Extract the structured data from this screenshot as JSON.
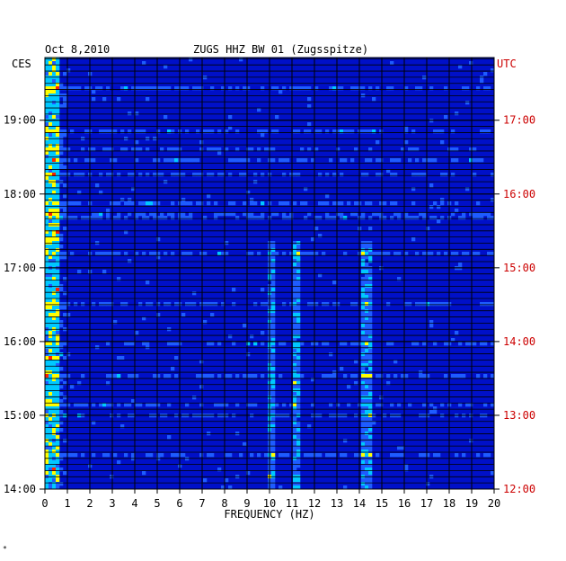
{
  "header": {
    "date": "Oct 8,2010",
    "station": "ZUGS HHZ BW 01 (Zugsspitze)",
    "left_tz": "CES",
    "right_tz": "UTC",
    "corner_mark": "*"
  },
  "chart_data": {
    "type": "heatmap",
    "title": "ZUGS HHZ BW 01 (Zugsspitze)",
    "subtitle": "Oct 8,2010",
    "xlabel": "FREQUENCY (HZ)",
    "xlim": [
      0,
      20
    ],
    "x_ticks": [
      "0",
      "1",
      "2",
      "3",
      "4",
      "5",
      "6",
      "7",
      "8",
      "9",
      "10",
      "11",
      "12",
      "13",
      "14",
      "15",
      "16",
      "17",
      "18",
      "19",
      "20"
    ],
    "left_axis_label": "CES",
    "left_ticks": [
      "19:00",
      "18:00",
      "17:00",
      "16:00",
      "15:00",
      "14:00"
    ],
    "right_axis_label": "UTC",
    "right_ticks": [
      "17:00",
      "16:00",
      "15:00",
      "14:00",
      "13:00",
      "12:00"
    ],
    "time_range_ces": [
      "14:00",
      "19:51"
    ],
    "colormap": [
      "#00007a",
      "#0010c8",
      "#1e5cff",
      "#00c8ff",
      "#ffff00",
      "#ff2000"
    ],
    "bright_bands_hz": [
      0.2,
      0.4,
      10.1,
      11.2,
      14.3
    ],
    "right_label_color": "#cc0000",
    "grid": true
  }
}
